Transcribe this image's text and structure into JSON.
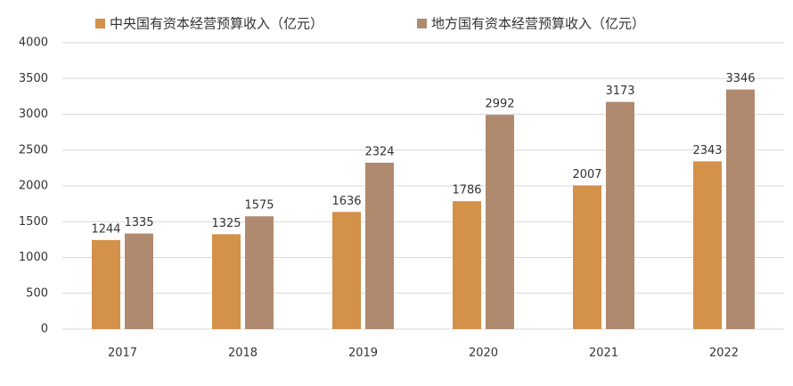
{
  "chart_data": {
    "type": "bar",
    "categories": [
      "2017",
      "2018",
      "2019",
      "2020",
      "2021",
      "2022"
    ],
    "series": [
      {
        "name": "中央国有资本经营预算收入（亿元）",
        "color": "#d4914a",
        "values": [
          1244,
          1325,
          1636,
          1786,
          2007,
          2343
        ]
      },
      {
        "name": "地方国有资本经营预算收入（亿元）",
        "color": "#b08a6e",
        "values": [
          1335,
          1575,
          2324,
          2992,
          3173,
          3346
        ]
      }
    ],
    "ylim": [
      0,
      4000
    ],
    "yticks": [
      0,
      500,
      1000,
      1500,
      2000,
      2500,
      3000,
      3500,
      4000
    ],
    "grid": true,
    "legend": "top"
  }
}
